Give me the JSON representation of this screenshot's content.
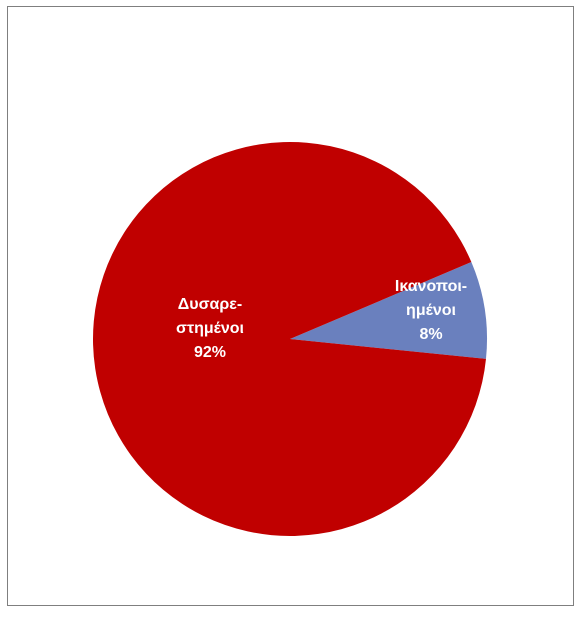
{
  "chart_data": {
    "type": "pie",
    "slices": [
      {
        "label_lines": [
          "Ικανοποι-",
          "ημένοι"
        ],
        "value": 8,
        "value_label": "8%",
        "color": "#6a80be"
      },
      {
        "label_lines": [
          "Δυσαρε-",
          "στημένοι"
        ],
        "value": 92,
        "value_label": "92%",
        "color": "#c00000"
      }
    ],
    "legend": "none",
    "labels": "inside"
  }
}
